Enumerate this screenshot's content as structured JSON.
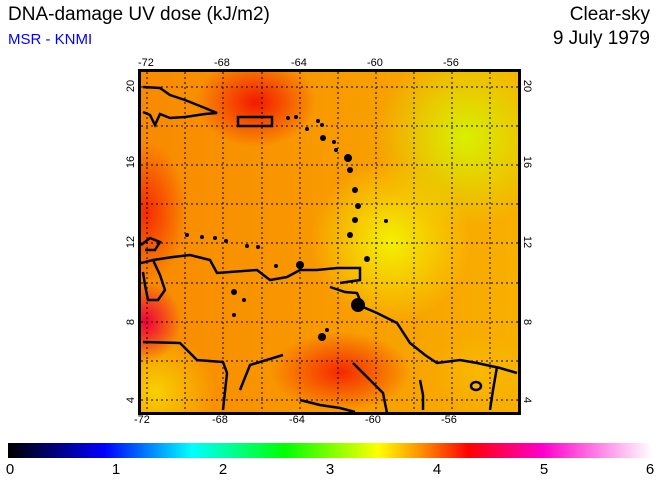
{
  "header": {
    "title": "DNA-damage UV dose (kJ/m2)",
    "source": "MSR - KNMI",
    "condition": "Clear-sky",
    "date": "9 July 1979"
  },
  "map": {
    "lon_labels": [
      "-72",
      "-68",
      "-64",
      "-60",
      "-56"
    ],
    "lat_labels": [
      "20",
      "16",
      "12",
      "8",
      "4"
    ],
    "region": "Caribbean / northern South America"
  },
  "colorbar": {
    "labels": [
      "0",
      "1",
      "2",
      "3",
      "4",
      "5",
      "6"
    ],
    "colors": [
      "#000000",
      "#0000ff",
      "#00ffff",
      "#00ff00",
      "#ffff00",
      "#ff0000",
      "#ff00cc",
      "#ffffff"
    ],
    "min": 0,
    "max": 6
  }
}
